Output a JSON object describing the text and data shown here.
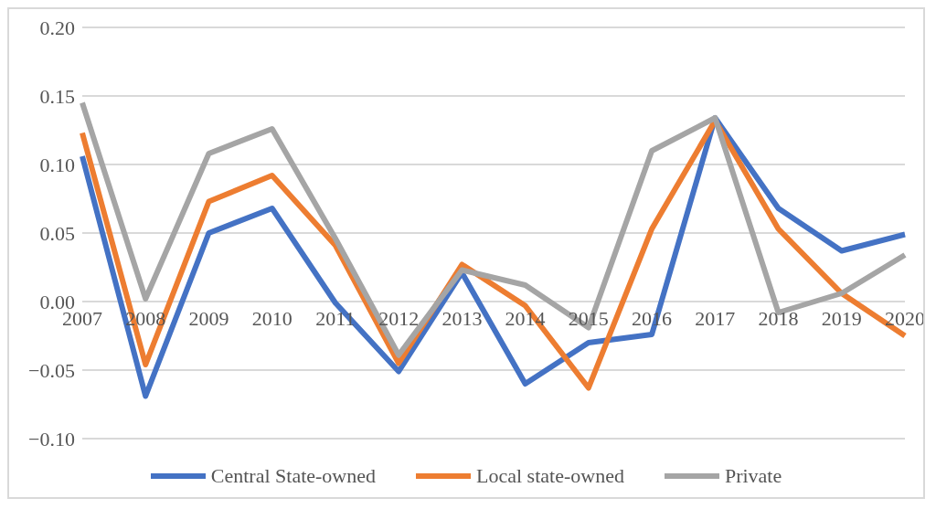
{
  "chart_data": {
    "type": "line",
    "categories": [
      "2007",
      "2008",
      "2009",
      "2010",
      "2011",
      "2012",
      "2013",
      "2014",
      "2015",
      "2016",
      "2017",
      "2018",
      "2019",
      "2020"
    ],
    "series": [
      {
        "name": "Central State-owned",
        "color": "#4472c4",
        "values": [
          0.106,
          -0.069,
          0.05,
          0.068,
          -0.001,
          -0.051,
          0.021,
          -0.06,
          -0.03,
          -0.024,
          0.134,
          0.068,
          0.037,
          0.049
        ]
      },
      {
        "name": "Local state-owned",
        "color": "#ed7d31",
        "values": [
          0.123,
          -0.046,
          0.073,
          0.092,
          0.041,
          -0.045,
          0.027,
          -0.003,
          -0.063,
          0.053,
          0.132,
          0.053,
          0.006,
          -0.025
        ]
      },
      {
        "name": "Private",
        "color": "#a5a5a5",
        "values": [
          0.145,
          0.002,
          0.108,
          0.126,
          0.046,
          -0.039,
          0.023,
          0.012,
          -0.019,
          0.11,
          0.134,
          -0.008,
          0.006,
          0.034
        ]
      }
    ],
    "ylim": [
      -0.1,
      0.2
    ],
    "yticks": [
      {
        "value": -0.1,
        "label": "−0.10"
      },
      {
        "value": -0.05,
        "label": "−0.05"
      },
      {
        "value": 0,
        "label": "0.00"
      },
      {
        "value": 0.05,
        "label": "0.05"
      },
      {
        "value": 0.1,
        "label": "0.10"
      },
      {
        "value": 0.15,
        "label": "0.15"
      },
      {
        "value": 0.2,
        "label": "0.20"
      }
    ],
    "grid": "y",
    "legend": "bottom",
    "marker": "none",
    "line_style": "solid"
  }
}
